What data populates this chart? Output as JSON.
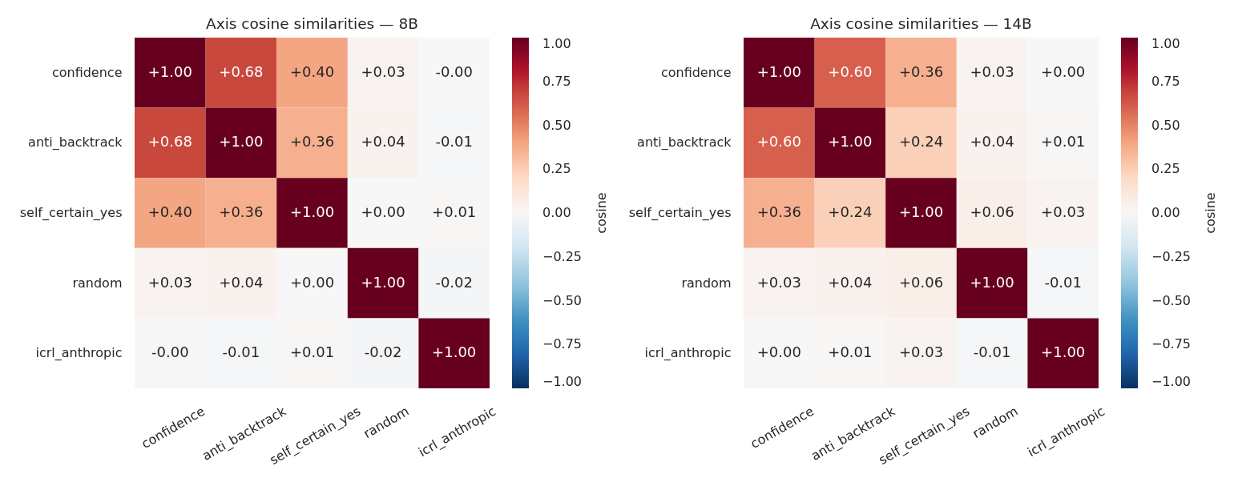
{
  "chart_data": [
    {
      "type": "heatmap",
      "title": "Axis cosine similarities — 8B",
      "categories": [
        "confidence",
        "anti_backtrack",
        "self_certain_yes",
        "random",
        "icrl_anthropic"
      ],
      "y_categories": [
        "confidence",
        "anti_backtrack",
        "self_certain_yes",
        "random",
        "icrl_anthropic"
      ],
      "cells": [
        [
          1.0,
          0.68,
          0.4,
          0.03,
          -0.0
        ],
        [
          0.68,
          1.0,
          0.36,
          0.04,
          -0.01
        ],
        [
          0.4,
          0.36,
          1.0,
          0.0,
          0.01
        ],
        [
          0.03,
          0.04,
          0.0,
          1.0,
          -0.02
        ],
        [
          -0.0,
          -0.01,
          0.01,
          -0.02,
          1.0
        ]
      ],
      "cell_labels": [
        [
          "+1.00",
          "+0.68",
          "+0.40",
          "+0.03",
          "-0.00"
        ],
        [
          "+0.68",
          "+1.00",
          "+0.36",
          "+0.04",
          "-0.01"
        ],
        [
          "+0.40",
          "+0.36",
          "+1.00",
          "+0.00",
          "+0.01"
        ],
        [
          "+0.03",
          "+0.04",
          "+0.00",
          "+1.00",
          "-0.02"
        ],
        [
          "-0.00",
          "-0.01",
          "+0.01",
          "-0.02",
          "+1.00"
        ]
      ],
      "clim": [
        -1,
        1
      ],
      "cticks": [
        {
          "value": -1,
          "label": "−1.00"
        },
        {
          "value": -0.75,
          "label": "−0.75"
        },
        {
          "value": -0.5,
          "label": "−0.50"
        },
        {
          "value": -0.25,
          "label": "−0.25"
        },
        {
          "value": 0,
          "label": "0.00"
        },
        {
          "value": 0.25,
          "label": "0.25"
        },
        {
          "value": 0.5,
          "label": "0.50"
        },
        {
          "value": 0.75,
          "label": "0.75"
        },
        {
          "value": 1,
          "label": "1.00"
        }
      ],
      "clabel": "cosine"
    },
    {
      "type": "heatmap",
      "title": "Axis cosine similarities — 14B",
      "categories": [
        "confidence",
        "anti_backtrack",
        "self_certain_yes",
        "random",
        "icrl_anthropic"
      ],
      "y_categories": [
        "confidence",
        "anti_backtrack",
        "self_certain_yes",
        "random",
        "icrl_anthropic"
      ],
      "cells": [
        [
          1.0,
          0.6,
          0.36,
          0.03,
          0.0
        ],
        [
          0.6,
          1.0,
          0.24,
          0.04,
          0.01
        ],
        [
          0.36,
          0.24,
          1.0,
          0.06,
          0.03
        ],
        [
          0.03,
          0.04,
          0.06,
          1.0,
          -0.01
        ],
        [
          0.0,
          0.01,
          0.03,
          -0.01,
          1.0
        ]
      ],
      "cell_labels": [
        [
          "+1.00",
          "+0.60",
          "+0.36",
          "+0.03",
          "+0.00"
        ],
        [
          "+0.60",
          "+1.00",
          "+0.24",
          "+0.04",
          "+0.01"
        ],
        [
          "+0.36",
          "+0.24",
          "+1.00",
          "+0.06",
          "+0.03"
        ],
        [
          "+0.03",
          "+0.04",
          "+0.06",
          "+1.00",
          "-0.01"
        ],
        [
          "+0.00",
          "+0.01",
          "+0.03",
          "-0.01",
          "+1.00"
        ]
      ],
      "clim": [
        -1,
        1
      ],
      "cticks": [
        {
          "value": -1,
          "label": "−1.00"
        },
        {
          "value": -0.75,
          "label": "−0.75"
        },
        {
          "value": -0.5,
          "label": "−0.50"
        },
        {
          "value": -0.25,
          "label": "−0.25"
        },
        {
          "value": 0,
          "label": "0.00"
        },
        {
          "value": 0.25,
          "label": "0.25"
        },
        {
          "value": 0.5,
          "label": "0.50"
        },
        {
          "value": 0.75,
          "label": "0.75"
        },
        {
          "value": 1,
          "label": "1.00"
        }
      ],
      "clabel": "cosine"
    }
  ]
}
